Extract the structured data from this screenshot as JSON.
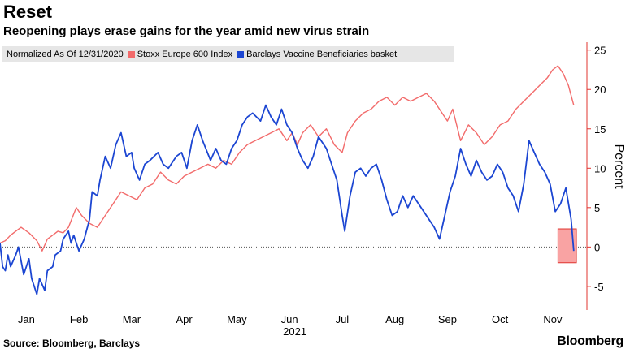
{
  "header": {
    "title": "Reset",
    "subtitle": "Reopening plays erase gains for the year amid new virus strain"
  },
  "legend": {
    "note": "Normalized As Of 12/31/2020"
  },
  "footer": {
    "source": "Source: Bloomberg, Barclays",
    "brand": "Bloomberg"
  },
  "colors": {
    "stoxx": "#f26b6b",
    "vaccine": "#1c46d2",
    "axis": "#e0342f",
    "highlight_fill": "#f9a3a3"
  },
  "chart_data": {
    "type": "line",
    "title": "Reset",
    "subtitle": "Reopening plays erase gains for the year amid new virus strain",
    "ylabel": "Percent",
    "xlabel": "2021",
    "ylim": [
      -8,
      26
    ],
    "yticks": [
      -5,
      0,
      5,
      10,
      15,
      20,
      25
    ],
    "y_axis_side": "right",
    "xlim": [
      0,
      11.15
    ],
    "x_ticks": [
      {
        "label": "Jan",
        "pos": 0.5
      },
      {
        "label": "Feb",
        "pos": 1.5
      },
      {
        "label": "Mar",
        "pos": 2.5
      },
      {
        "label": "Apr",
        "pos": 3.5
      },
      {
        "label": "May",
        "pos": 4.5
      },
      {
        "label": "Jun",
        "pos": 5.5
      },
      {
        "label": "Jul",
        "pos": 6.5
      },
      {
        "label": "Aug",
        "pos": 7.5
      },
      {
        "label": "Sep",
        "pos": 8.5
      },
      {
        "label": "Oct",
        "pos": 9.5
      },
      {
        "label": "Nov",
        "pos": 10.5
      }
    ],
    "zero_line": true,
    "legend_position": "top-left",
    "annotation": {
      "type": "highlight-box",
      "x_range": [
        10.6,
        10.95
      ],
      "y_range": [
        -2,
        2.3
      ]
    },
    "series": [
      {
        "name": "Stoxx Europe 600 Index",
        "color": "#f26b6b",
        "x": [
          0,
          0.1,
          0.2,
          0.3,
          0.4,
          0.55,
          0.7,
          0.8,
          0.9,
          1.0,
          1.1,
          1.2,
          1.3,
          1.45,
          1.55,
          1.7,
          1.85,
          2.0,
          2.15,
          2.3,
          2.45,
          2.6,
          2.75,
          2.9,
          3.05,
          3.2,
          3.35,
          3.5,
          3.65,
          3.8,
          3.95,
          4.1,
          4.25,
          4.4,
          4.55,
          4.7,
          4.85,
          5.0,
          5.15,
          5.3,
          5.45,
          5.55,
          5.65,
          5.75,
          5.9,
          6.05,
          6.2,
          6.35,
          6.5,
          6.6,
          6.75,
          6.9,
          7.05,
          7.2,
          7.35,
          7.5,
          7.65,
          7.8,
          7.95,
          8.1,
          8.25,
          8.4,
          8.5,
          8.6,
          8.75,
          8.9,
          9.05,
          9.2,
          9.35,
          9.5,
          9.65,
          9.8,
          9.95,
          10.1,
          10.25,
          10.4,
          10.5,
          10.6,
          10.7,
          10.8,
          10.9
        ],
        "values": [
          0.5,
          0.8,
          1.5,
          2.0,
          2.5,
          1.8,
          0.8,
          -0.5,
          1.0,
          1.5,
          2.0,
          1.8,
          2.5,
          5.0,
          4.0,
          3.0,
          2.5,
          4.0,
          5.5,
          7.0,
          6.5,
          6.0,
          7.5,
          8.0,
          9.5,
          8.5,
          8.0,
          9.0,
          9.5,
          10.0,
          10.5,
          10.0,
          11.0,
          10.5,
          12.0,
          13.0,
          13.5,
          14.0,
          14.5,
          15.0,
          13.5,
          14.5,
          13.0,
          14.5,
          15.5,
          14.0,
          15.0,
          13.0,
          12.0,
          14.5,
          16.0,
          17.0,
          17.5,
          18.5,
          19.0,
          18.0,
          19.0,
          18.5,
          19.0,
          19.5,
          18.5,
          17.0,
          16.0,
          17.5,
          13.5,
          15.5,
          14.5,
          13.0,
          14.0,
          15.5,
          16.0,
          17.5,
          18.5,
          19.5,
          20.5,
          21.5,
          22.5,
          23.0,
          22.0,
          20.5,
          18.0
        ]
      },
      {
        "name": "Barclays Vaccine Beneficiaries basket",
        "color": "#1c46d2",
        "x": [
          0,
          0.05,
          0.1,
          0.15,
          0.2,
          0.3,
          0.35,
          0.45,
          0.55,
          0.6,
          0.7,
          0.75,
          0.85,
          0.9,
          1.0,
          1.05,
          1.15,
          1.2,
          1.3,
          1.35,
          1.4,
          1.5,
          1.6,
          1.7,
          1.75,
          1.85,
          1.9,
          2.0,
          2.1,
          2.2,
          2.3,
          2.4,
          2.5,
          2.55,
          2.65,
          2.75,
          2.85,
          3.0,
          3.1,
          3.2,
          3.35,
          3.45,
          3.55,
          3.65,
          3.75,
          3.85,
          4.0,
          4.1,
          4.2,
          4.3,
          4.4,
          4.5,
          4.6,
          4.7,
          4.8,
          4.95,
          5.05,
          5.15,
          5.25,
          5.35,
          5.45,
          5.55,
          5.65,
          5.75,
          5.85,
          5.95,
          6.05,
          6.2,
          6.3,
          6.4,
          6.5,
          6.55,
          6.65,
          6.75,
          6.85,
          6.95,
          7.05,
          7.15,
          7.25,
          7.35,
          7.45,
          7.55,
          7.65,
          7.75,
          7.85,
          7.95,
          8.05,
          8.15,
          8.25,
          8.35,
          8.45,
          8.55,
          8.65,
          8.75,
          8.85,
          8.95,
          9.05,
          9.15,
          9.25,
          9.35,
          9.45,
          9.55,
          9.65,
          9.75,
          9.85,
          9.95,
          10.05,
          10.15,
          10.25,
          10.35,
          10.45,
          10.55,
          10.65,
          10.75,
          10.85,
          10.9
        ],
        "values": [
          0.5,
          -2.5,
          -3.0,
          -1.0,
          -2.5,
          -1.0,
          0.0,
          -3.5,
          -1.5,
          -4.0,
          -6.0,
          -4.0,
          -5.5,
          -3.0,
          -2.5,
          -1.0,
          -0.5,
          1.0,
          2.0,
          0.5,
          1.5,
          -0.5,
          1.0,
          3.5,
          7.0,
          6.5,
          8.5,
          11.5,
          10.0,
          13.0,
          14.5,
          11.5,
          12.0,
          10.0,
          8.5,
          10.5,
          11.0,
          12.0,
          10.5,
          10.0,
          11.5,
          12.0,
          10.0,
          13.5,
          15.5,
          13.5,
          11.0,
          12.5,
          11.0,
          10.5,
          12.5,
          13.5,
          15.5,
          16.5,
          17.0,
          16.0,
          18.0,
          16.5,
          15.5,
          17.5,
          15.5,
          14.5,
          12.5,
          11.0,
          10.0,
          11.5,
          14.0,
          12.5,
          10.5,
          8.5,
          4.0,
          2.0,
          6.5,
          9.5,
          10.0,
          9.0,
          10.0,
          10.5,
          8.5,
          6.0,
          4.0,
          4.5,
          6.5,
          5.0,
          6.5,
          5.5,
          4.5,
          3.5,
          2.5,
          1.0,
          4.0,
          7.0,
          9.0,
          12.5,
          10.5,
          9.0,
          11.0,
          9.5,
          8.5,
          9.0,
          10.5,
          9.5,
          7.5,
          6.5,
          4.5,
          8.0,
          13.5,
          12.0,
          10.5,
          9.5,
          8.0,
          4.5,
          5.5,
          7.5,
          3.5,
          -0.5
        ]
      }
    ]
  }
}
